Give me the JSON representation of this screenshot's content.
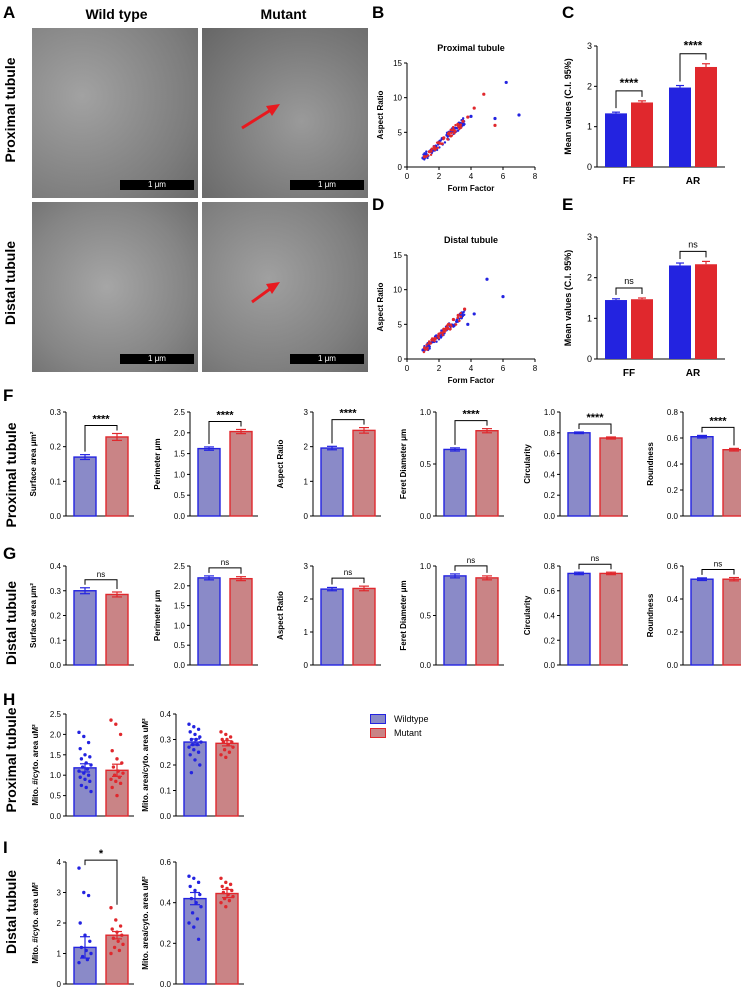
{
  "panel_letters": {
    "A": "A",
    "B": "B",
    "C": "C",
    "D": "D",
    "E": "E",
    "F": "F",
    "G": "G",
    "H": "H",
    "I": "I"
  },
  "panel_a": {
    "col_headers": [
      "Wild type",
      "Mutant"
    ],
    "row_labels": [
      "Proximal tubule",
      "Distal tubule"
    ],
    "scale_bar": "1 μm"
  },
  "row_labels": {
    "F": "Proximal tubule",
    "G": "Distal tubule",
    "H": "Proximal tubule",
    "I": "Distal tubule"
  },
  "legend": {
    "items": [
      {
        "label": "Wildtype",
        "color": "#2323e0"
      },
      {
        "label": "Mutant",
        "color": "#e0282d"
      }
    ]
  },
  "colors": {
    "wt": "#2323e0",
    "mut": "#e0282d",
    "wt_fill": "#8a8ac8",
    "mut_fill": "#c98486"
  },
  "chart_data": [
    {
      "id": "B",
      "type": "scatter",
      "title": "Proximal tubule",
      "xlabel": "Form Factor",
      "ylabel": "Aspect Ratio",
      "xlim": [
        0,
        8
      ],
      "ylim": [
        0,
        15
      ],
      "xticks": [
        "0",
        "2",
        "4",
        "6",
        "8"
      ],
      "yticks": [
        "0",
        "5",
        "10",
        "15"
      ],
      "series": [
        {
          "color": "#2323e0",
          "x": [
            1.0,
            1.2,
            1.5,
            1.8,
            2.0,
            2.2,
            2.5,
            2.8,
            3.0,
            3.3,
            3.5,
            4.0,
            5.5,
            6.2,
            7.0
          ],
          "y": [
            1.3,
            1.8,
            2.4,
            3.0,
            3.6,
            4.1,
            4.6,
            5.2,
            5.6,
            6.0,
            6.4,
            7.3,
            7.0,
            12.2,
            7.5
          ]
        },
        {
          "color": "#e0282d",
          "x": [
            1.1,
            1.4,
            1.7,
            2.0,
            2.3,
            2.6,
            2.9,
            3.2,
            3.5,
            3.8,
            4.2,
            4.8,
            5.5
          ],
          "y": [
            1.5,
            2.2,
            2.9,
            3.5,
            4.2,
            4.8,
            5.4,
            6.0,
            6.6,
            7.2,
            8.5,
            10.5,
            6.0
          ]
        }
      ]
    },
    {
      "id": "C",
      "type": "bar",
      "xlabel": "",
      "ylabel": "Mean values (C.I. 95%)",
      "categories": [
        "FF",
        "AR"
      ],
      "ylim": [
        0,
        3
      ],
      "yticks": [
        "0",
        "1",
        "2",
        "3"
      ],
      "series": [
        {
          "values": [
            1.33,
            1.97
          ],
          "errors": [
            0.03,
            0.05
          ]
        },
        {
          "values": [
            1.6,
            2.48
          ],
          "errors": [
            0.04,
            0.08
          ]
        }
      ],
      "annotations": [
        "****",
        "****"
      ]
    },
    {
      "id": "D",
      "type": "scatter",
      "title": "Distal tubule",
      "xlabel": "Form Factor",
      "ylabel": "Aspect Ratio",
      "xlim": [
        0,
        8
      ],
      "ylim": [
        0,
        15
      ],
      "xticks": [
        "0",
        "2",
        "4",
        "6",
        "8"
      ],
      "yticks": [
        "0",
        "5",
        "10",
        "15"
      ],
      "series": [
        {
          "color": "#2323e0",
          "x": [
            1.0,
            1.3,
            1.6,
            1.9,
            2.2,
            2.5,
            2.8,
            3.1,
            3.4,
            3.8,
            4.2,
            5.0,
            6.0
          ],
          "y": [
            1.3,
            1.9,
            2.5,
            3.1,
            3.7,
            4.3,
            4.9,
            5.4,
            6.0,
            5.0,
            6.5,
            11.5,
            9.0
          ]
        },
        {
          "color": "#e0282d",
          "x": [
            1.1,
            1.4,
            1.7,
            2.0,
            2.3,
            2.6,
            2.9,
            3.2,
            3.6
          ],
          "y": [
            1.6,
            2.3,
            2.9,
            3.6,
            4.3,
            5.0,
            5.7,
            6.3,
            7.2
          ]
        }
      ]
    },
    {
      "id": "E",
      "type": "bar",
      "xlabel": "",
      "ylabel": "Mean values (C.I. 95%)",
      "categories": [
        "FF",
        "AR"
      ],
      "ylim": [
        0,
        3
      ],
      "yticks": [
        "0",
        "1",
        "2",
        "3"
      ],
      "series": [
        {
          "values": [
            1.45,
            2.3
          ],
          "errors": [
            0.03,
            0.06
          ]
        },
        {
          "values": [
            1.47,
            2.33
          ],
          "errors": [
            0.03,
            0.07
          ]
        }
      ],
      "annotations": [
        "ns",
        "ns"
      ]
    },
    {
      "id": "F1",
      "type": "bar",
      "ylabel": "Surface area μm²",
      "categories": [
        "Wildtype",
        "Mutant"
      ],
      "ylim": [
        0,
        0.3
      ],
      "yticks": [
        "0.0",
        "0.1",
        "0.2",
        "0.3"
      ],
      "values": [
        0.17,
        0.228
      ],
      "errors": [
        0.007,
        0.01
      ],
      "annotation": "****"
    },
    {
      "id": "F2",
      "type": "bar",
      "ylabel": "Perimeter μm",
      "categories": [
        "Wildtype",
        "Mutant"
      ],
      "ylim": [
        0,
        2.5
      ],
      "yticks": [
        "0.0",
        "0.5",
        "1.0",
        "1.5",
        "2.0",
        "2.5"
      ],
      "values": [
        1.62,
        2.03
      ],
      "errors": [
        0.04,
        0.05
      ],
      "annotation": "****"
    },
    {
      "id": "F3",
      "type": "bar",
      "ylabel": "Aspect Ratio",
      "categories": [
        "Wildtype",
        "Mutant"
      ],
      "ylim": [
        0,
        3
      ],
      "yticks": [
        "0",
        "1",
        "2",
        "3"
      ],
      "values": [
        1.96,
        2.47
      ],
      "errors": [
        0.05,
        0.08
      ],
      "annotation": "****"
    },
    {
      "id": "F4",
      "type": "bar",
      "ylabel": "Feret Diameter μm",
      "categories": [
        "Wildtype",
        "Mutant"
      ],
      "ylim": [
        0,
        1.0
      ],
      "yticks": [
        "0.0",
        "0.5",
        "1.0"
      ],
      "values": [
        0.64,
        0.82
      ],
      "errors": [
        0.015,
        0.02
      ],
      "annotation": "****"
    },
    {
      "id": "F5",
      "type": "bar",
      "ylabel": "Circularity",
      "categories": [
        "Wildtype",
        "Mutant"
      ],
      "ylim": [
        0,
        1.0
      ],
      "yticks": [
        "0.0",
        "0.2",
        "0.4",
        "0.6",
        "0.8",
        "1.0"
      ],
      "values": [
        0.8,
        0.75
      ],
      "errors": [
        0.008,
        0.01
      ],
      "annotation": "****"
    },
    {
      "id": "F6",
      "type": "bar",
      "ylabel": "Roundness",
      "categories": [
        "Wildtype",
        "Mutant"
      ],
      "ylim": [
        0,
        0.8
      ],
      "yticks": [
        "0.0",
        "0.2",
        "0.4",
        "0.6",
        "0.8"
      ],
      "values": [
        0.61,
        0.51
      ],
      "errors": [
        0.01,
        0.01
      ],
      "annotation": "****"
    },
    {
      "id": "G1",
      "type": "bar",
      "ylabel": "Surface area μm²",
      "categories": [
        "Wildtype",
        "Mutant"
      ],
      "ylim": [
        0,
        0.4
      ],
      "yticks": [
        "0.0",
        "0.1",
        "0.2",
        "0.3",
        "0.4"
      ],
      "values": [
        0.3,
        0.285
      ],
      "errors": [
        0.012,
        0.01
      ],
      "annotation": "ns"
    },
    {
      "id": "G2",
      "type": "bar",
      "ylabel": "Perimeter μm",
      "categories": [
        "Wildtype",
        "Mutant"
      ],
      "ylim": [
        0,
        2.5
      ],
      "yticks": [
        "0.0",
        "0.5",
        "1.0",
        "1.5",
        "2.0",
        "2.5"
      ],
      "values": [
        2.2,
        2.18
      ],
      "errors": [
        0.05,
        0.05
      ],
      "annotation": "ns"
    },
    {
      "id": "G3",
      "type": "bar",
      "ylabel": "Aspect Ratio",
      "categories": [
        "Wildtype",
        "Mutant"
      ],
      "ylim": [
        0,
        3
      ],
      "yticks": [
        "0",
        "1",
        "2",
        "3"
      ],
      "values": [
        2.3,
        2.32
      ],
      "errors": [
        0.05,
        0.07
      ],
      "annotation": "ns"
    },
    {
      "id": "G4",
      "type": "bar",
      "ylabel": "Feret Diameter μm",
      "categories": [
        "Wildtype",
        "Mutant"
      ],
      "ylim": [
        0,
        1.0
      ],
      "yticks": [
        "0.0",
        "0.5",
        "1.0"
      ],
      "values": [
        0.9,
        0.88
      ],
      "errors": [
        0.02,
        0.02
      ],
      "annotation": "ns"
    },
    {
      "id": "G5",
      "type": "bar",
      "ylabel": "Circularity",
      "categories": [
        "Wildtype",
        "Mutant"
      ],
      "ylim": [
        0,
        0.8
      ],
      "yticks": [
        "0.0",
        "0.2",
        "0.4",
        "0.6",
        "0.8"
      ],
      "values": [
        0.74,
        0.74
      ],
      "errors": [
        0.01,
        0.01
      ],
      "annotation": "ns"
    },
    {
      "id": "G6",
      "type": "bar",
      "ylabel": "Roundness",
      "categories": [
        "Wildtype",
        "Mutant"
      ],
      "ylim": [
        0,
        0.6
      ],
      "yticks": [
        "0.0",
        "0.2",
        "0.4",
        "0.6"
      ],
      "values": [
        0.52,
        0.52
      ],
      "errors": [
        0.008,
        0.01
      ],
      "annotation": "ns"
    },
    {
      "id": "H1",
      "type": "bar",
      "ylabel": "Mito. #/cyto. area uM²",
      "categories": [
        "Wildtype",
        "Mutant"
      ],
      "ylim": [
        0,
        2.5
      ],
      "yticks": [
        "0.0",
        "0.5",
        "1.0",
        "1.5",
        "2.0",
        "2.5"
      ],
      "values": [
        1.18,
        1.12
      ],
      "errors": [
        0.1,
        0.15
      ],
      "points": [
        [
          2.05,
          1.95,
          1.8,
          1.65,
          1.5,
          1.45,
          1.4,
          1.3,
          1.25,
          1.2,
          1.15,
          1.1,
          1.05,
          1.0,
          0.95,
          0.9,
          0.85,
          0.75,
          0.7,
          0.6
        ],
        [
          2.35,
          2.25,
          2.0,
          1.6,
          1.4,
          1.3,
          1.2,
          1.1,
          1.05,
          1.0,
          0.95,
          0.9,
          0.85,
          0.8,
          0.7,
          0.5
        ]
      ]
    },
    {
      "id": "H2",
      "type": "bar",
      "ylabel": "Mito. area/cyto. area uM²",
      "categories": [
        "Wildtype",
        "Mutant"
      ],
      "ylim": [
        0,
        0.4
      ],
      "yticks": [
        "0.0",
        "0.1",
        "0.2",
        "0.3",
        "0.4"
      ],
      "values": [
        0.29,
        0.285
      ],
      "errors": [
        0.012,
        0.01
      ],
      "points": [
        [
          0.36,
          0.35,
          0.34,
          0.33,
          0.32,
          0.31,
          0.3,
          0.3,
          0.29,
          0.28,
          0.28,
          0.27,
          0.26,
          0.25,
          0.24,
          0.22,
          0.2,
          0.17
        ],
        [
          0.33,
          0.32,
          0.31,
          0.3,
          0.3,
          0.29,
          0.29,
          0.28,
          0.27,
          0.26,
          0.25,
          0.24,
          0.23
        ]
      ]
    },
    {
      "id": "I1",
      "type": "bar",
      "ylabel": "Mito. #/cyto. area uM²",
      "categories": [
        "Wildtype",
        "Mutant"
      ],
      "ylim": [
        0,
        4
      ],
      "yticks": [
        "0",
        "1",
        "2",
        "3",
        "4"
      ],
      "values": [
        1.2,
        1.6
      ],
      "errors": [
        0.35,
        0.12
      ],
      "annotation": "*",
      "points": [
        [
          3.8,
          3.0,
          2.9,
          2.0,
          1.6,
          1.4,
          1.2,
          1.1,
          1.0,
          0.9,
          0.8,
          0.7
        ],
        [
          2.5,
          2.1,
          1.9,
          1.8,
          1.7,
          1.6,
          1.5,
          1.4,
          1.3,
          1.2,
          1.1,
          1.0
        ]
      ]
    },
    {
      "id": "I2",
      "type": "bar",
      "ylabel": "Mito. area/cyto. area uM²",
      "categories": [
        "Wildtype",
        "Mutant"
      ],
      "ylim": [
        0,
        0.6
      ],
      "yticks": [
        "0.0",
        "0.2",
        "0.4",
        "0.6"
      ],
      "values": [
        0.42,
        0.445
      ],
      "errors": [
        0.03,
        0.02
      ],
      "points": [
        [
          0.53,
          0.52,
          0.5,
          0.48,
          0.46,
          0.44,
          0.42,
          0.4,
          0.38,
          0.35,
          0.32,
          0.3,
          0.28,
          0.22
        ],
        [
          0.52,
          0.5,
          0.49,
          0.48,
          0.47,
          0.46,
          0.45,
          0.44,
          0.43,
          0.42,
          0.41,
          0.4,
          0.38
        ]
      ]
    }
  ]
}
